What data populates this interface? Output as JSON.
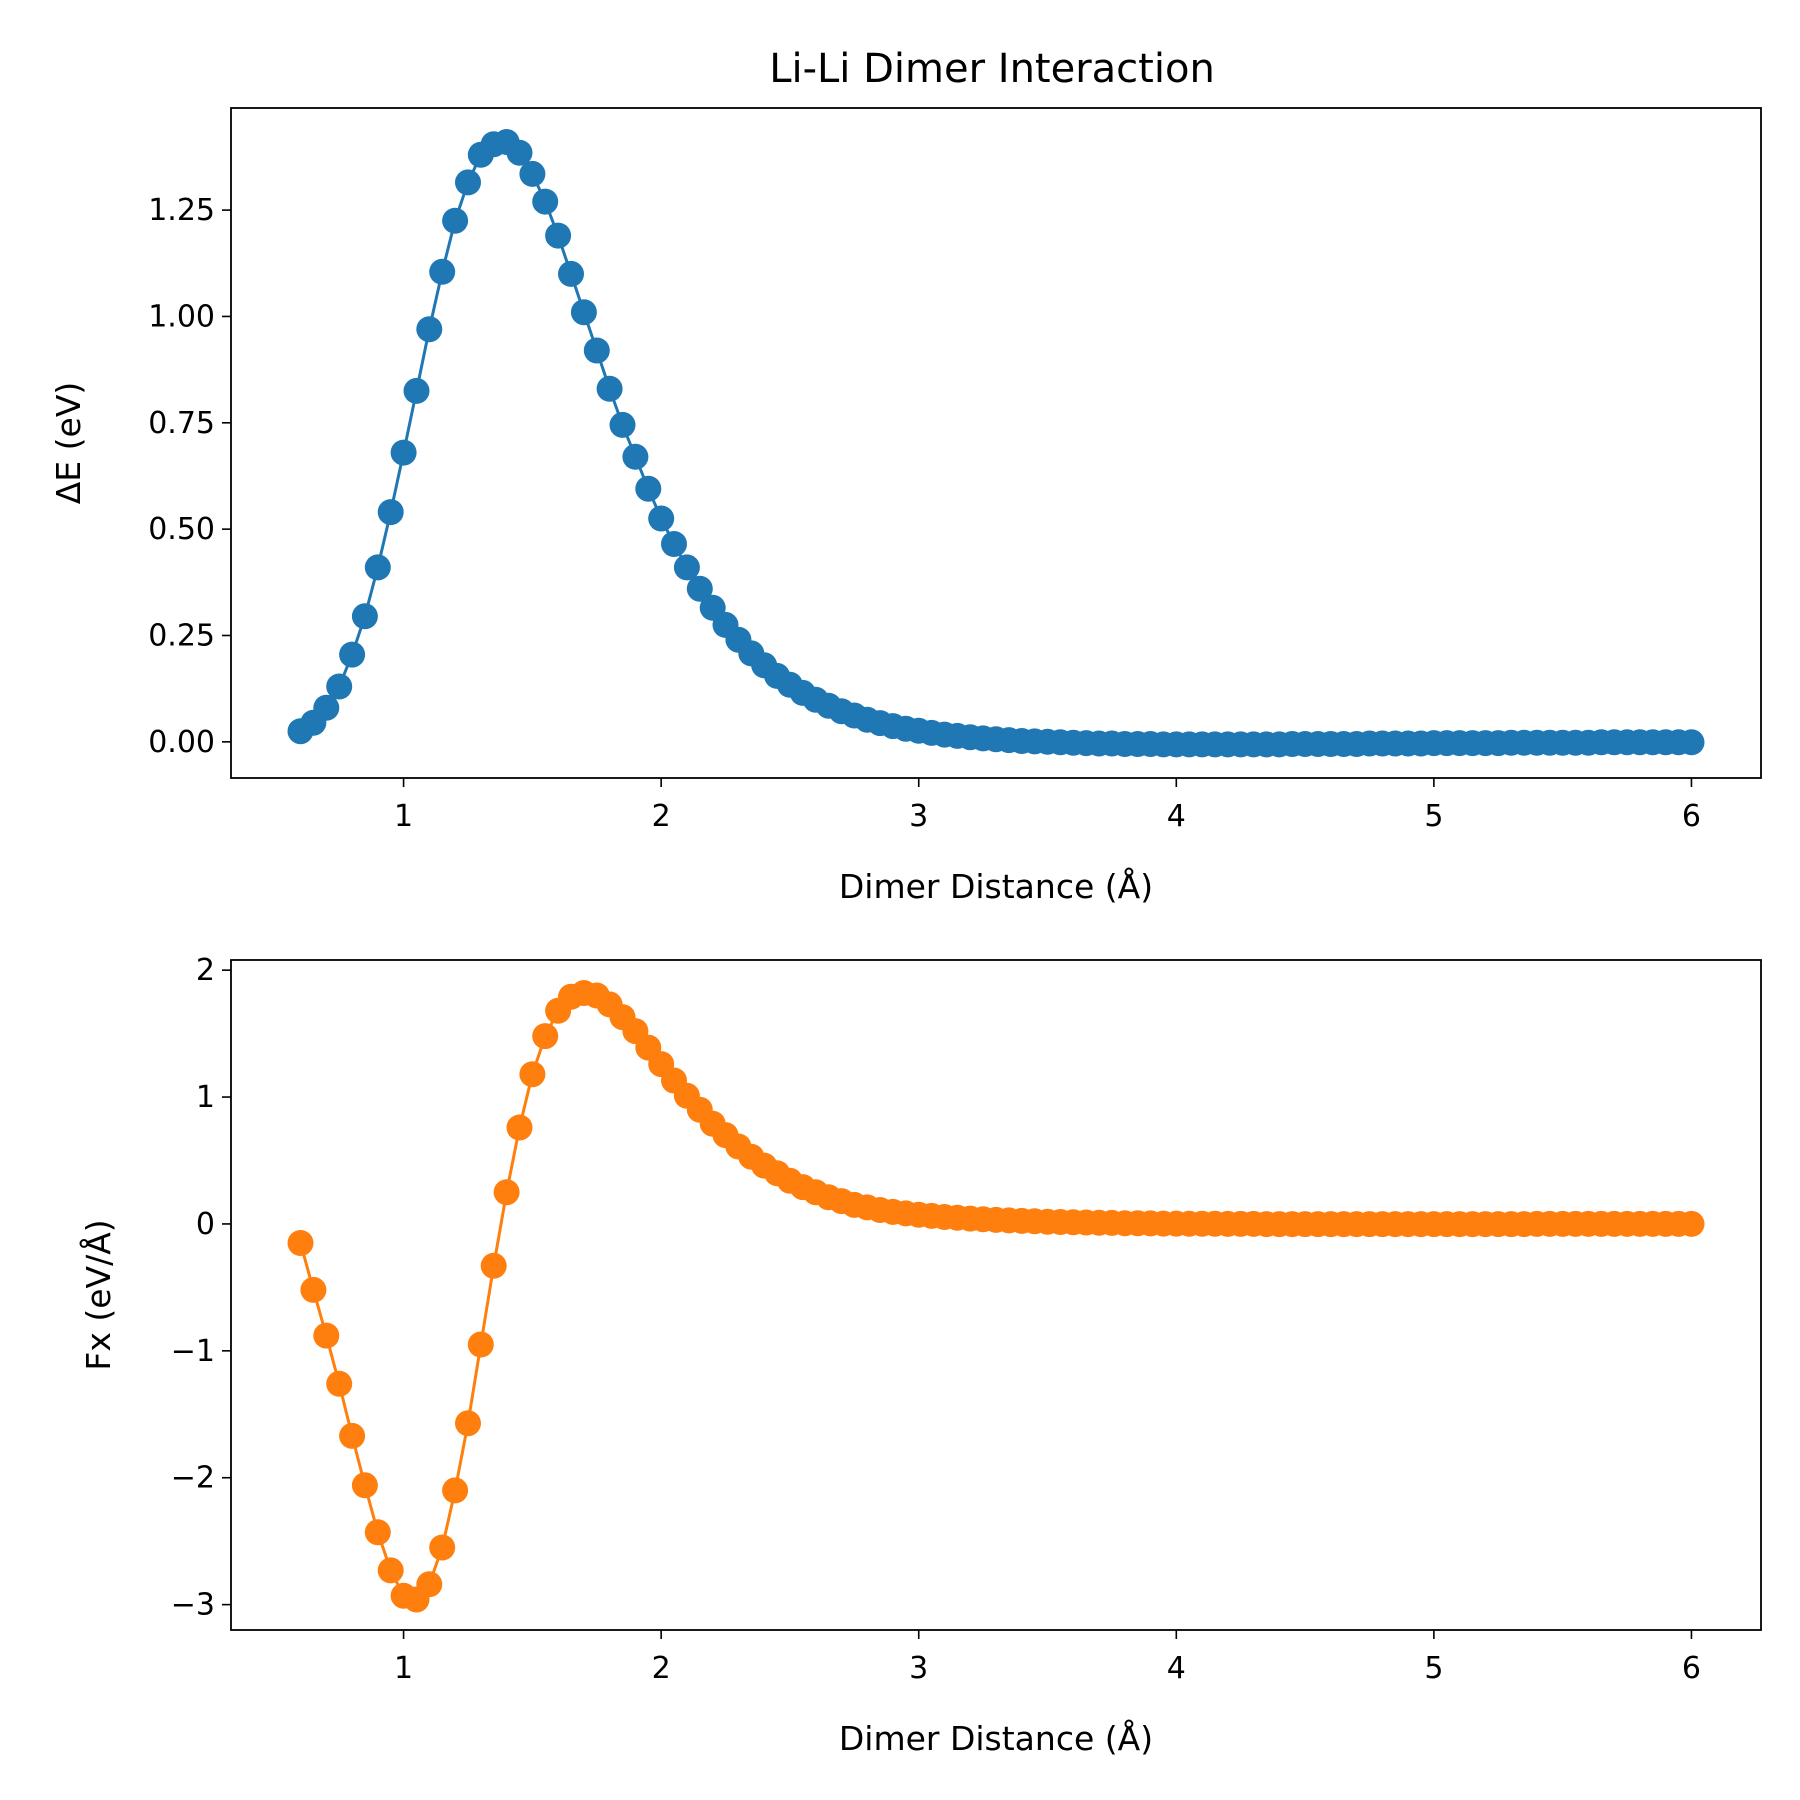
{
  "chart_data": [
    {
      "type": "line",
      "title": "Li-Li Dimer Interaction",
      "xlabel": "Dimer Distance (Å)",
      "ylabel": "ΔE (eV)",
      "xlim": [
        0.33,
        6.27
      ],
      "ylim": [
        -0.085,
        1.49
      ],
      "xticks": [
        1,
        2,
        3,
        4,
        5,
        6
      ],
      "xtick_labels": [
        "1",
        "2",
        "3",
        "4",
        "5",
        "6"
      ],
      "yticks": [
        0,
        0.25,
        0.5,
        0.75,
        1.0,
        1.25
      ],
      "ytick_labels": [
        "0.00",
        "0.25",
        "0.50",
        "0.75",
        "1.00",
        "1.25"
      ],
      "grid": false,
      "series": [
        {
          "name": "ΔE",
          "color": "#1f77b4",
          "marker": "o",
          "x_start": 0.6,
          "x_step": 0.05,
          "values": [
            0.025,
            0.045,
            0.08,
            0.13,
            0.205,
            0.295,
            0.41,
            0.54,
            0.68,
            0.825,
            0.97,
            1.105,
            1.225,
            1.315,
            1.38,
            1.405,
            1.41,
            1.385,
            1.335,
            1.27,
            1.19,
            1.1,
            1.01,
            0.92,
            0.83,
            0.745,
            0.67,
            0.595,
            0.525,
            0.465,
            0.41,
            0.36,
            0.315,
            0.275,
            0.24,
            0.208,
            0.18,
            0.155,
            0.134,
            0.115,
            0.099,
            0.085,
            0.072,
            0.062,
            0.052,
            0.044,
            0.037,
            0.031,
            0.026,
            0.021,
            0.017,
            0.014,
            0.011,
            0.008,
            0.006,
            0.004,
            0.002,
            0.001,
            0.0,
            -0.001,
            -0.002,
            -0.003,
            -0.004,
            -0.004,
            -0.005,
            -0.005,
            -0.005,
            -0.006,
            -0.006,
            -0.006,
            -0.006,
            -0.006,
            -0.006,
            -0.006,
            -0.006,
            -0.006,
            -0.006,
            -0.005,
            -0.005,
            -0.005,
            -0.005,
            -0.005,
            -0.005,
            -0.004,
            -0.004,
            -0.004,
            -0.004,
            -0.004,
            -0.003,
            -0.003,
            -0.003,
            -0.003,
            -0.003,
            -0.003,
            -0.002,
            -0.002,
            -0.002,
            -0.002,
            -0.002,
            -0.002,
            -0.002,
            -0.001,
            -0.001,
            -0.001,
            -0.001,
            -0.001,
            -0.001,
            -0.001,
            -0.001
          ]
        }
      ]
    },
    {
      "type": "line",
      "title": "",
      "xlabel": "Dimer Distance (Å)",
      "ylabel": "Fx (eV/Å)",
      "xlim": [
        0.33,
        6.27
      ],
      "ylim": [
        -3.2,
        2.08
      ],
      "xticks": [
        1,
        2,
        3,
        4,
        5,
        6
      ],
      "xtick_labels": [
        "1",
        "2",
        "3",
        "4",
        "5",
        "6"
      ],
      "yticks": [
        -3,
        -2,
        -1,
        0,
        1,
        2
      ],
      "ytick_labels": [
        "−3",
        "−2",
        "−1",
        "0",
        "1",
        "2"
      ],
      "grid": false,
      "series": [
        {
          "name": "Fx",
          "color": "#ff7f0e",
          "marker": "o",
          "x_start": 0.6,
          "x_step": 0.05,
          "values": [
            -0.15,
            -0.52,
            -0.88,
            -1.26,
            -1.67,
            -2.06,
            -2.43,
            -2.73,
            -2.93,
            -2.96,
            -2.84,
            -2.55,
            -2.1,
            -1.57,
            -0.95,
            -0.33,
            0.25,
            0.76,
            1.18,
            1.48,
            1.68,
            1.79,
            1.82,
            1.8,
            1.73,
            1.63,
            1.52,
            1.39,
            1.26,
            1.13,
            1.01,
            0.9,
            0.79,
            0.7,
            0.61,
            0.53,
            0.46,
            0.4,
            0.34,
            0.29,
            0.25,
            0.21,
            0.18,
            0.15,
            0.13,
            0.11,
            0.095,
            0.083,
            0.072,
            0.063,
            0.055,
            0.048,
            0.042,
            0.037,
            0.032,
            0.028,
            0.024,
            0.021,
            0.018,
            0.015,
            0.013,
            0.011,
            0.009,
            0.008,
            0.006,
            0.005,
            0.004,
            0.003,
            0.003,
            0.002,
            0.001,
            0.001,
            0.0,
            0.0,
            0.0,
            -0.001,
            -0.001,
            -0.001,
            -0.001,
            -0.001,
            -0.001,
            -0.001,
            -0.001,
            -0.001,
            -0.001,
            -0.001,
            -0.001,
            -0.001,
            -0.001,
            -0.001,
            -0.001,
            -0.001,
            -0.001,
            -0.001,
            -0.001,
            -0.001,
            0.0,
            0.0,
            0.0,
            0.0,
            0.0,
            0.0,
            0.0,
            0.0,
            0.0,
            0.0,
            0.0,
            0.0,
            0.0
          ]
        }
      ]
    }
  ]
}
